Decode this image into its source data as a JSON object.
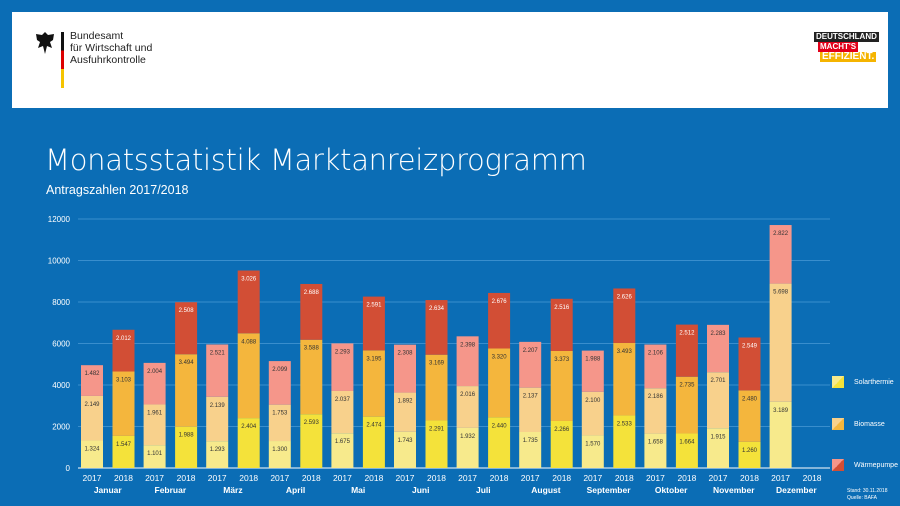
{
  "header": {
    "agency_lines": [
      "Bundesamt",
      "für Wirtschaft und",
      "Ausfuhrkontrolle"
    ],
    "campaign_logo": [
      "DEUTSCHLAND",
      "MACHT'S",
      "EFFIZIENT."
    ]
  },
  "title": "Monatsstatistik Marktanreizprogramm",
  "subtitle": "Antragszahlen 2017/2018",
  "footer": {
    "stand": "Stand: 30.11.2018",
    "quelle": "Quelle: BAFA"
  },
  "colors": {
    "background": "#0b6db5",
    "solar_2017": "#f7ea8c",
    "solar_2018": "#f4e23a",
    "bio_2017": "#f8d18c",
    "bio_2018": "#f4b63d",
    "wp_2017": "#f5968a",
    "wp_2018": "#d24e35"
  },
  "chart_data": {
    "type": "bar",
    "stacked": true,
    "title": "Monatsstatistik Marktanreizprogramm",
    "subtitle": "Antragszahlen 2017/2018",
    "ylim": [
      0,
      12000
    ],
    "yticks": [
      0,
      2000,
      4000,
      6000,
      8000,
      10000,
      12000
    ],
    "grid": true,
    "legend_position": "right",
    "years": [
      "2017",
      "2018"
    ],
    "months": [
      "Januar",
      "Februar",
      "März",
      "April",
      "Mai",
      "Juni",
      "Juli",
      "August",
      "September",
      "Oktober",
      "November",
      "Dezember"
    ],
    "series": [
      {
        "name": "Solarthermie",
        "values_2017": [
          1324,
          1101,
          1293,
          1300,
          1675,
          1743,
          1932,
          1735,
          1570,
          1658,
          1915,
          3189
        ],
        "values_2018": [
          1547,
          1988,
          2404,
          2593,
          2474,
          2291,
          2440,
          2266,
          2533,
          1664,
          1260,
          null
        ]
      },
      {
        "name": "Biomasse",
        "values_2017": [
          2149,
          1961,
          2139,
          1753,
          2037,
          1892,
          2016,
          2137,
          2100,
          2186,
          2701,
          5698
        ],
        "values_2018": [
          3103,
          3494,
          4088,
          3588,
          3195,
          3169,
          3320,
          3373,
          3493,
          2735,
          2480,
          null
        ]
      },
      {
        "name": "Wärmepumpe",
        "values_2017": [
          1482,
          2004,
          2521,
          2099,
          2293,
          2308,
          2398,
          2207,
          1988,
          2106,
          2283,
          2822
        ],
        "values_2018": [
          2012,
          2508,
          3026,
          2688,
          2591,
          2634,
          2676,
          2516,
          2626,
          2512,
          2549,
          null
        ]
      }
    ]
  }
}
